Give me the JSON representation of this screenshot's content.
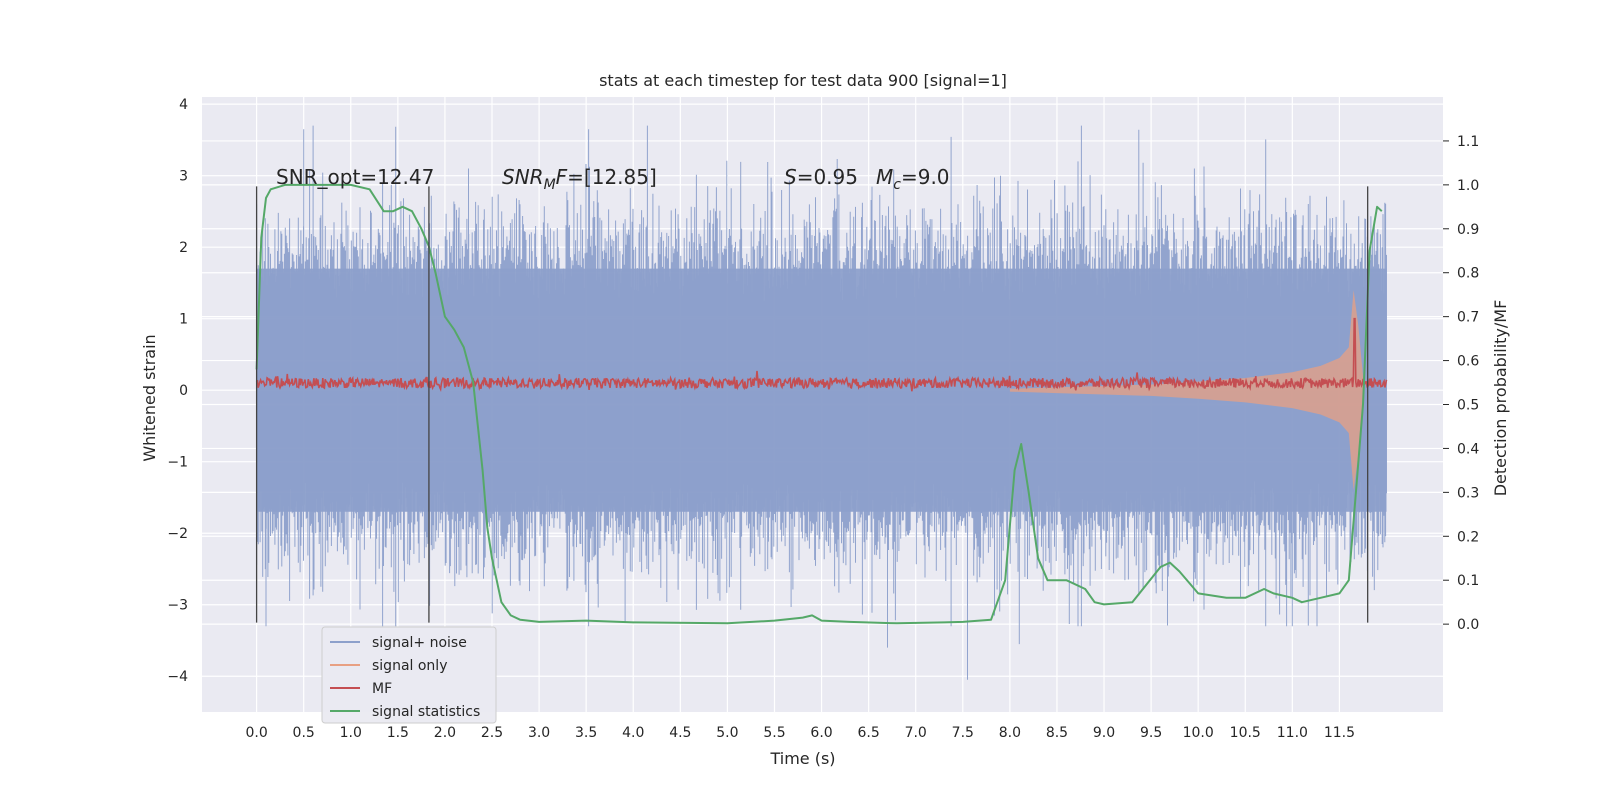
{
  "chart_data": {
    "type": "line",
    "title": "stats at each timestep for test data 900 [signal=1]",
    "xlabel": "Time (s)",
    "ylabel_left": "Whitened strain",
    "ylabel_right": "Detection probability/MF",
    "xlim": [
      -0.58,
      12.6
    ],
    "ylim_left": [
      -4.5,
      4.1
    ],
    "ylim_right": [
      -0.2,
      1.2
    ],
    "x_ticks": [
      0.0,
      0.5,
      1.0,
      1.5,
      2.0,
      2.5,
      3.0,
      3.5,
      4.0,
      4.5,
      5.0,
      5.5,
      6.0,
      6.5,
      7.0,
      7.5,
      8.0,
      8.5,
      9.0,
      9.5,
      10.0,
      10.5,
      11.0,
      11.5
    ],
    "x_tick_labels": [
      "0.0",
      "0.5",
      "1.0",
      "1.5",
      "2.0",
      "2.5",
      "3.0",
      "3.5",
      "4.0",
      "4.5",
      "5.0",
      "5.5",
      "6.0",
      "6.5",
      "7.0",
      "7.5",
      "8.0",
      "8.5",
      "9.0",
      "9.5",
      "10.0",
      "10.5",
      "11.0",
      "11.5"
    ],
    "y_left_ticks": [
      4,
      3,
      2,
      1,
      0,
      -1,
      -2,
      -3,
      -4
    ],
    "y_left_tick_labels": [
      "4",
      "3",
      "2",
      "1",
      "0",
      "−1",
      "−2",
      "−3",
      "−4"
    ],
    "y_right_ticks": [
      1.1,
      1.0,
      0.9,
      0.8,
      0.7,
      0.6,
      0.5,
      0.4,
      0.3,
      0.2,
      0.1,
      0.0
    ],
    "y_right_tick_labels": [
      "1.1",
      "1.0",
      "0.9",
      "0.8",
      "0.7",
      "0.6",
      "0.5",
      "0.4",
      "0.3",
      "0.2",
      "0.1",
      "0.0"
    ],
    "grid": true,
    "legend_placement": "lower-left",
    "annotations": {
      "snr_opt": "SNR_opt=12.47",
      "snr_mf_label": "SNR",
      "snr_mf_sub": "M",
      "snr_mf_tail": "F",
      "snr_mf_value": "=[12.85]",
      "s_label": "S",
      "s_value": "=0.95",
      "mc_label": "M",
      "mc_sub": "c",
      "mc_value": "=9.0"
    },
    "vertical_markers": [
      {
        "x": 0.0,
        "y_range": [
          -3.25,
          2.85
        ]
      },
      {
        "x": 1.83,
        "y_range": [
          -3.25,
          2.85
        ]
      },
      {
        "x": 11.8,
        "y_range": [
          -3.25,
          2.85
        ]
      }
    ],
    "series": [
      {
        "name": "signal+ noise",
        "color": "#8da0cb",
        "axis": "left",
        "style": "dense-noise",
        "x_range": [
          0.0,
          12.0
        ],
        "envelope_left": [
          -1.7,
          1.7
        ],
        "peaks_left": [
          -4.05,
          3.7
        ]
      },
      {
        "name": "signal only",
        "color": "#e8a083",
        "axis": "left",
        "style": "chirp",
        "x": [
          8.0,
          8.5,
          9.0,
          9.5,
          10.0,
          10.5,
          11.0,
          11.3,
          11.5,
          11.6,
          11.65,
          11.7,
          11.75
        ],
        "amplitude": [
          0.02,
          0.04,
          0.06,
          0.08,
          0.12,
          0.17,
          0.25,
          0.34,
          0.45,
          0.6,
          1.4,
          0.9,
          0.2
        ]
      },
      {
        "name": "MF",
        "color": "#c44e52",
        "axis": "left",
        "style": "jitter",
        "x_range": [
          0.0,
          12.0
        ],
        "baseline_left": 0.1,
        "spike": {
          "x": 11.66,
          "y": 1.0
        }
      },
      {
        "name": "signal statistics",
        "color": "#55a868",
        "axis": "right",
        "style": "line",
        "x": [
          0.0,
          0.05,
          0.1,
          0.15,
          0.3,
          0.6,
          1.0,
          1.2,
          1.35,
          1.45,
          1.55,
          1.65,
          1.75,
          1.83,
          1.9,
          2.0,
          2.1,
          2.2,
          2.3,
          2.4,
          2.45,
          2.5,
          2.6,
          2.7,
          2.8,
          3.0,
          3.5,
          4.0,
          5.0,
          5.5,
          5.8,
          5.9,
          6.0,
          6.3,
          6.8,
          7.3,
          7.5,
          7.8,
          7.95,
          8.05,
          8.12,
          8.2,
          8.3,
          8.4,
          8.6,
          8.8,
          8.9,
          9.0,
          9.3,
          9.6,
          9.7,
          9.8,
          10.0,
          10.3,
          10.5,
          10.7,
          10.8,
          11.0,
          11.1,
          11.3,
          11.5,
          11.6,
          11.75,
          11.82,
          11.9,
          11.95
        ],
        "y": [
          0.58,
          0.88,
          0.97,
          0.99,
          1.0,
          1.0,
          1.0,
          0.99,
          0.94,
          0.94,
          0.95,
          0.94,
          0.9,
          0.86,
          0.8,
          0.7,
          0.67,
          0.63,
          0.55,
          0.35,
          0.22,
          0.15,
          0.05,
          0.02,
          0.01,
          0.005,
          0.008,
          0.004,
          0.002,
          0.008,
          0.015,
          0.02,
          0.008,
          0.005,
          0.002,
          0.004,
          0.005,
          0.01,
          0.1,
          0.35,
          0.41,
          0.3,
          0.15,
          0.1,
          0.1,
          0.08,
          0.05,
          0.045,
          0.05,
          0.13,
          0.14,
          0.12,
          0.07,
          0.06,
          0.06,
          0.08,
          0.07,
          0.06,
          0.05,
          0.06,
          0.07,
          0.1,
          0.5,
          0.85,
          0.95,
          0.94
        ]
      }
    ]
  }
}
